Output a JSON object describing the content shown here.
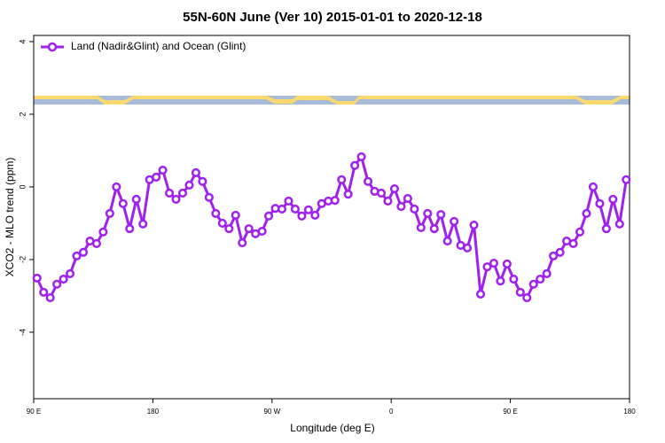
{
  "chart_data": {
    "type": "line",
    "title": "55N-60N June (Ver 10)   2015-01-01 to 2020-12-18",
    "x_label": "Longitude (deg E)",
    "y_label": "XCO2 - MLO trend (ppm)",
    "x": [
      92.5,
      97.5,
      102.5,
      107.5,
      112.5,
      117.5,
      122.5,
      127.5,
      132.5,
      137.5,
      142.5,
      147.5,
      152.5,
      157.5,
      162.5,
      167.5,
      172.5,
      177.5,
      182.5,
      187.5,
      192.5,
      197.5,
      202.5,
      207.5,
      212.5,
      217.5,
      222.5,
      227.5,
      232.5,
      237.5,
      242.5,
      247.5,
      252.5,
      257.5,
      262.5,
      267.5,
      272.5,
      277.5,
      282.5,
      287.5,
      292.5,
      297.5,
      302.5,
      307.5,
      312.5,
      317.5,
      322.5,
      327.5,
      332.5,
      337.5,
      342.5,
      347.5,
      352.5,
      357.5,
      362.5,
      367.5,
      372.5,
      377.5,
      382.5,
      387.5,
      392.5,
      397.5,
      402.5,
      407.5,
      412.5,
      417.5,
      422.5,
      427.5,
      432.5,
      437.5,
      442.5,
      447.5,
      452.5,
      457.5,
      462.5,
      467.5,
      472.5,
      477.5,
      482.5,
      487.5,
      492.5,
      497.5,
      502.5,
      507.5,
      512.5,
      517.5,
      522.5,
      527.5,
      532.5,
      537.5
    ],
    "series": [
      {
        "name": "Land (Nadir&Glint) and Ocean (Glint)",
        "color": "#a020f0",
        "values": [
          -2.51,
          -2.9,
          -3.05,
          -2.68,
          -2.54,
          -2.39,
          -1.9,
          -1.8,
          -1.49,
          -1.56,
          -1.24,
          -0.73,
          0,
          -0.46,
          -1.15,
          -0.34,
          -1.02,
          0.2,
          0.27,
          0.46,
          -0.17,
          -0.34,
          -0.17,
          0.05,
          0.39,
          0.15,
          -0.29,
          -0.73,
          -1.0,
          -1.15,
          -0.78,
          -1.54,
          -1.15,
          -1.29,
          -1.22,
          -0.8,
          -0.59,
          -0.61,
          -0.39,
          -0.61,
          -0.8,
          -0.63,
          -0.78,
          -0.46,
          -0.39,
          -0.37,
          0.2,
          -0.2,
          0.59,
          0.83,
          0.15,
          -0.12,
          -0.17,
          -0.39,
          -0.05,
          -0.54,
          -0.32,
          -0.61,
          -1.12,
          -0.73,
          -1.15,
          -0.76,
          -1.49,
          -0.95,
          -1.61,
          -1.68,
          -1.05,
          -2.95,
          -2.2,
          -2.1,
          -2.59,
          -2.12,
          -2.54,
          -2.9,
          -3.05,
          -2.68,
          -2.54,
          -2.39,
          -1.9,
          -1.8,
          -1.49,
          -1.56,
          -1.24,
          -0.73,
          0,
          -0.46,
          -1.15,
          -0.34,
          -1.02,
          0.2
        ]
      }
    ],
    "xlim": [
      90,
      540
    ],
    "xticks": [
      {
        "value": 90,
        "label": "90 E"
      },
      {
        "value": 180,
        "label": "180"
      },
      {
        "value": 270,
        "label": "90 W"
      },
      {
        "value": 360,
        "label": "0"
      },
      {
        "value": 450,
        "label": "90 E"
      },
      {
        "value": 540,
        "label": "180"
      }
    ],
    "ylim": [
      -5.83,
      4.17
    ],
    "yticks": [
      -4,
      -2,
      0,
      2,
      4
    ],
    "legend": "top-left"
  }
}
